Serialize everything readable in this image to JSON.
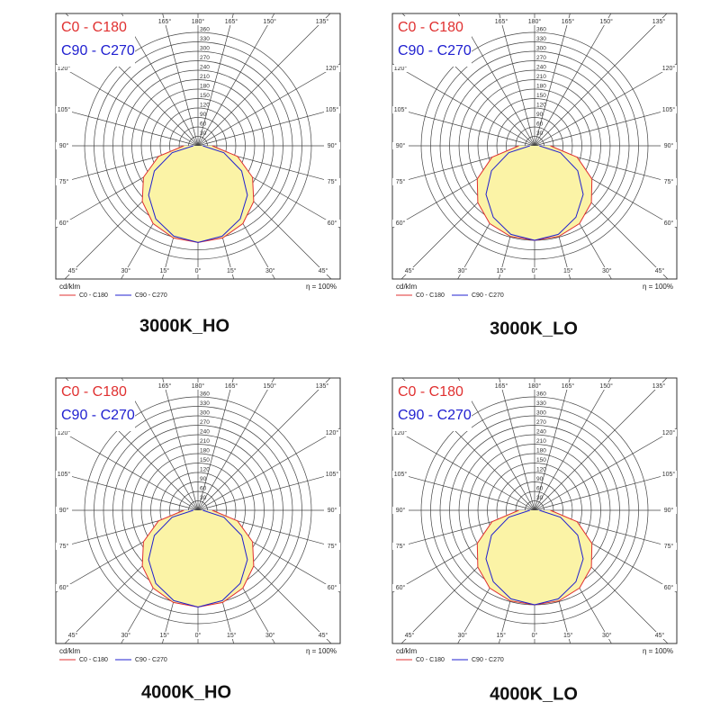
{
  "chart_data": [
    {
      "type": "polar",
      "title": "3000K_HO",
      "unit": "cd/klm",
      "note": "η = 100%",
      "x": [
        0,
        15,
        30,
        45,
        60,
        75,
        90
      ],
      "series": [
        {
          "name": "C0 - C180",
          "color": "#e03030",
          "values": [
            307,
            303,
            285,
            250,
            200,
            130,
            45
          ]
        },
        {
          "name": "C90 - C270",
          "color": "#2020d0",
          "values": [
            307,
            297,
            268,
            222,
            160,
            85,
            15
          ]
        }
      ],
      "rlim": [
        0,
        420
      ],
      "rticks": [
        30,
        60,
        90,
        120,
        150,
        180,
        210,
        240,
        270,
        300,
        330,
        360
      ],
      "xticks": [
        {
          "value": 0,
          "label": "0°"
        },
        {
          "value": 15,
          "label": "15°"
        },
        {
          "value": 30,
          "label": "30°"
        },
        {
          "value": 45,
          "label": "45°"
        },
        {
          "value": 60,
          "label": "60°"
        },
        {
          "value": 75,
          "label": "75°"
        },
        {
          "value": 90,
          "label": "90°"
        },
        {
          "value": 105,
          "label": "105°"
        },
        {
          "value": 120,
          "label": "120°"
        },
        {
          "value": 135,
          "label": "135°"
        },
        {
          "value": 150,
          "label": "150°"
        },
        {
          "value": 165,
          "label": "165°"
        },
        {
          "value": 180,
          "label": "180°"
        }
      ]
    },
    {
      "type": "polar",
      "title": "3000K_LO",
      "unit": "cd/klm",
      "note": "η = 100%",
      "x": [
        0,
        15,
        30,
        45,
        60,
        75,
        90
      ],
      "series": [
        {
          "name": "C0 - C180",
          "color": "#e03030",
          "values": [
            300,
            298,
            285,
            255,
            210,
            140,
            50
          ]
        },
        {
          "name": "C90 - C270",
          "color": "#2020d0",
          "values": [
            300,
            291,
            262,
            218,
            158,
            85,
            15
          ]
        }
      ],
      "rlim": [
        0,
        420
      ],
      "rticks": [
        30,
        60,
        90,
        120,
        150,
        180,
        210,
        240,
        270,
        300,
        330,
        360
      ],
      "xticks": [
        {
          "value": 0,
          "label": "0°"
        },
        {
          "value": 15,
          "label": "15°"
        },
        {
          "value": 30,
          "label": "30°"
        },
        {
          "value": 45,
          "label": "45°"
        },
        {
          "value": 60,
          "label": "60°"
        },
        {
          "value": 75,
          "label": "75°"
        },
        {
          "value": 90,
          "label": "90°"
        },
        {
          "value": 105,
          "label": "105°"
        },
        {
          "value": 120,
          "label": "120°"
        },
        {
          "value": 135,
          "label": "135°"
        },
        {
          "value": 150,
          "label": "150°"
        },
        {
          "value": 165,
          "label": "165°"
        },
        {
          "value": 180,
          "label": "180°"
        }
      ]
    },
    {
      "type": "polar",
      "title": "4000K_HO",
      "unit": "cd/klm",
      "note": "η = 100%",
      "x": [
        0,
        15,
        30,
        45,
        60,
        75,
        90
      ],
      "series": [
        {
          "name": "C0 - C180",
          "color": "#e03030",
          "values": [
            307,
            303,
            285,
            250,
            200,
            130,
            45
          ]
        },
        {
          "name": "C90 - C270",
          "color": "#2020d0",
          "values": [
            307,
            297,
            268,
            222,
            160,
            85,
            15
          ]
        }
      ],
      "rlim": [
        0,
        420
      ],
      "rticks": [
        30,
        60,
        90,
        120,
        150,
        180,
        210,
        240,
        270,
        300,
        330,
        360
      ],
      "xticks": [
        {
          "value": 0,
          "label": "0°"
        },
        {
          "value": 15,
          "label": "15°"
        },
        {
          "value": 30,
          "label": "30°"
        },
        {
          "value": 45,
          "label": "45°"
        },
        {
          "value": 60,
          "label": "60°"
        },
        {
          "value": 75,
          "label": "75°"
        },
        {
          "value": 90,
          "label": "90°"
        },
        {
          "value": 105,
          "label": "105°"
        },
        {
          "value": 120,
          "label": "120°"
        },
        {
          "value": 135,
          "label": "135°"
        },
        {
          "value": 150,
          "label": "150°"
        },
        {
          "value": 165,
          "label": "165°"
        },
        {
          "value": 180,
          "label": "180°"
        }
      ]
    },
    {
      "type": "polar",
      "title": "4000K_LO",
      "unit": "cd/klm",
      "note": "η = 100%",
      "x": [
        0,
        15,
        30,
        45,
        60,
        75,
        90
      ],
      "series": [
        {
          "name": "C0 - C180",
          "color": "#e03030",
          "values": [
            300,
            298,
            285,
            255,
            210,
            140,
            50
          ]
        },
        {
          "name": "C90 - C270",
          "color": "#2020d0",
          "values": [
            300,
            291,
            262,
            218,
            158,
            85,
            15
          ]
        }
      ],
      "rlim": [
        0,
        420
      ],
      "rticks": [
        30,
        60,
        90,
        120,
        150,
        180,
        210,
        240,
        270,
        300,
        330,
        360
      ],
      "xticks": [
        {
          "value": 0,
          "label": "0°"
        },
        {
          "value": 15,
          "label": "15°"
        },
        {
          "value": 30,
          "label": "30°"
        },
        {
          "value": 45,
          "label": "45°"
        },
        {
          "value": 60,
          "label": "60°"
        },
        {
          "value": 75,
          "label": "75°"
        },
        {
          "value": 90,
          "label": "90°"
        },
        {
          "value": 105,
          "label": "105°"
        },
        {
          "value": 120,
          "label": "120°"
        },
        {
          "value": 135,
          "label": "135°"
        },
        {
          "value": 150,
          "label": "150°"
        },
        {
          "value": 165,
          "label": "165°"
        },
        {
          "value": 180,
          "label": "180°"
        }
      ]
    }
  ]
}
